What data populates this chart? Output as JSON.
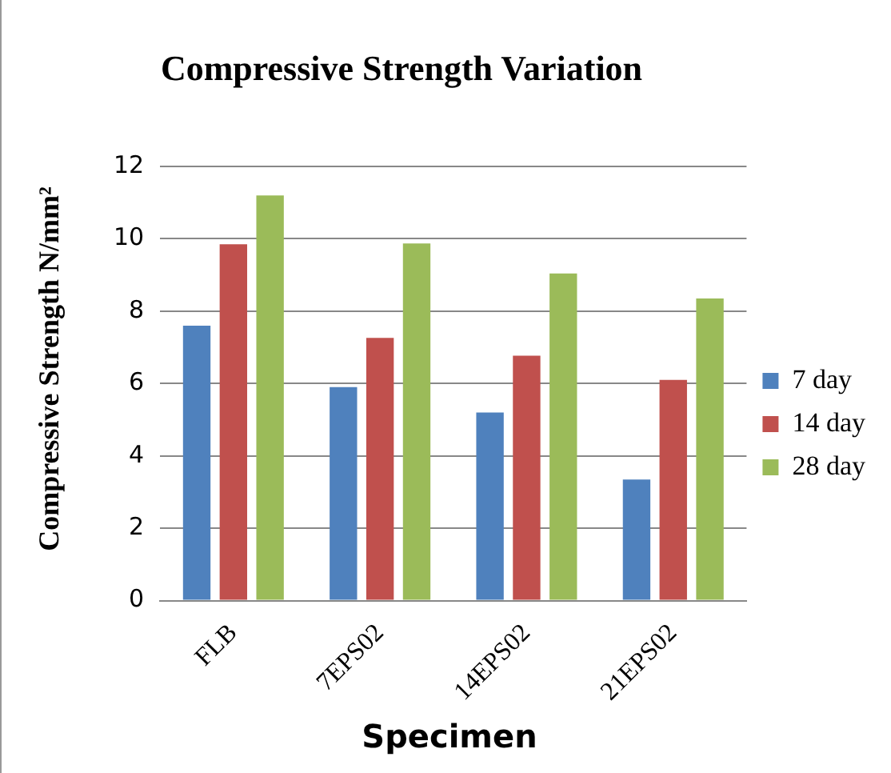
{
  "chart_data": {
    "type": "bar",
    "title": "Compressive Strength Variation",
    "xlabel": "Specimen",
    "ylabel": "Compressive Strength N/mm²",
    "categories": [
      "FLB",
      "7EPS02",
      "14EPS02",
      "21EPS02"
    ],
    "series": [
      {
        "name": "7 day",
        "color": "#4f81bd",
        "values": [
          7.6,
          5.9,
          5.2,
          3.35
        ]
      },
      {
        "name": "14 day",
        "color": "#c0504d",
        "values": [
          9.85,
          7.26,
          6.77,
          6.1
        ]
      },
      {
        "name": "28 day",
        "color": "#9bbb59",
        "values": [
          11.2,
          9.87,
          9.04,
          8.35
        ]
      }
    ],
    "ylim": [
      0,
      12
    ],
    "yticks": [
      0,
      2,
      4,
      6,
      8,
      10,
      12
    ],
    "grid": "y",
    "legend": "right"
  }
}
